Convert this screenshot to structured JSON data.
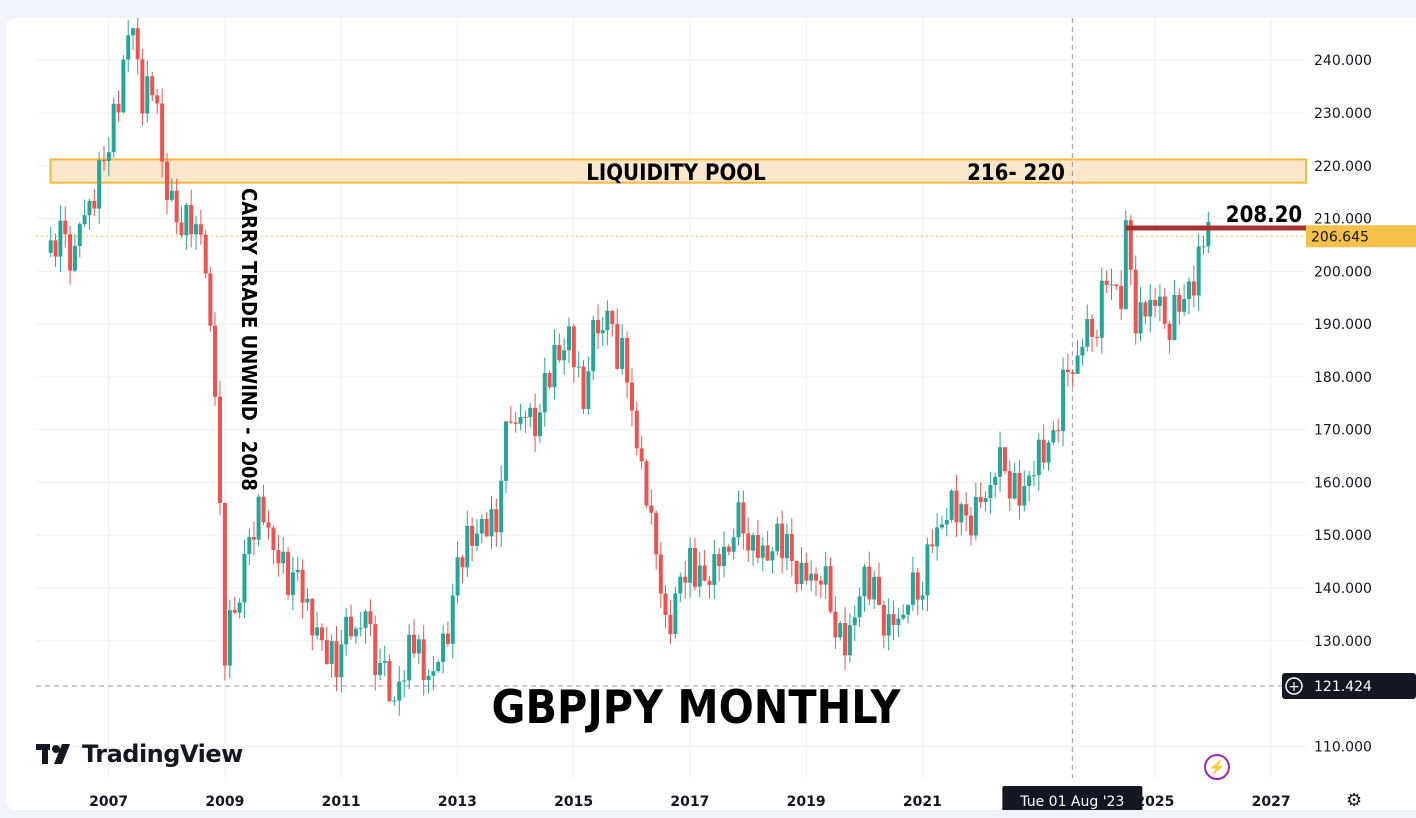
{
  "chart_data": {
    "type": "candlestick",
    "symbol_title": "GBPJPY MONTHLY",
    "branding": "TradingView",
    "y_axis": {
      "ticks": [
        "240.000",
        "230.000",
        "220.000",
        "210.000",
        "200.000",
        "190.000",
        "180.000",
        "170.000",
        "160.000",
        "150.000",
        "140.000",
        "130.000",
        "110.000"
      ],
      "range": [
        104,
        248
      ]
    },
    "x_axis": {
      "ticks": [
        "2007",
        "2009",
        "2011",
        "2013",
        "2015",
        "2017",
        "2019",
        "2021",
        "2025",
        "2027"
      ],
      "range": [
        2005.75,
        2027.6
      ]
    },
    "current_price": {
      "label": "206.645",
      "value": 206.645,
      "color": "#f5c14a"
    },
    "crosshair": {
      "price_label": "121.424",
      "price": 121.424,
      "time_label": "Tue 01 Aug '23",
      "time": 2023.58
    },
    "annotations": {
      "liquidity_pool": {
        "label": "LIQUIDITY POOL",
        "range_label": "216- 220",
        "low": 216.8,
        "high": 221.2,
        "from": 2006.0
      },
      "resistance": {
        "label": "208.20",
        "value": 208.2,
        "from": 2024.5,
        "color": "#a83232"
      },
      "carry_trade": {
        "label": "CARRY TRADE UNWIND - 2008"
      }
    },
    "colors": {
      "up": "#26a69a",
      "down": "#ef5350"
    },
    "series": [
      {
        "name": "",
        "points": [
          [
            2005.92,
            203.5
          ],
          [
            2006.17,
            206
          ],
          [
            2006.42,
            204
          ],
          [
            2006.67,
            212
          ],
          [
            2006.92,
            222
          ],
          [
            2007.17,
            235
          ],
          [
            2007.42,
            246
          ],
          [
            2007.58,
            232
          ],
          [
            2007.75,
            238
          ],
          [
            2007.92,
            220
          ],
          [
            2008.17,
            210
          ],
          [
            2008.42,
            212
          ],
          [
            2008.67,
            200
          ],
          [
            2008.83,
            178
          ],
          [
            2009.0,
            130
          ],
          [
            2009.17,
            135
          ],
          [
            2009.42,
            150
          ],
          [
            2009.58,
            156
          ],
          [
            2009.75,
            148
          ],
          [
            2009.92,
            146
          ],
          [
            2010.17,
            142
          ],
          [
            2010.42,
            135
          ],
          [
            2010.67,
            130
          ],
          [
            2010.92,
            128
          ],
          [
            2011.17,
            132
          ],
          [
            2011.42,
            134
          ],
          [
            2011.67,
            125
          ],
          [
            2011.83,
            119
          ],
          [
            2012.0,
            122
          ],
          [
            2012.17,
            130
          ],
          [
            2012.42,
            124
          ],
          [
            2012.67,
            125
          ],
          [
            2012.92,
            138
          ],
          [
            2013.17,
            148
          ],
          [
            2013.42,
            152
          ],
          [
            2013.67,
            155
          ],
          [
            2013.92,
            173
          ],
          [
            2014.17,
            172
          ],
          [
            2014.42,
            173
          ],
          [
            2014.67,
            182
          ],
          [
            2014.92,
            188
          ],
          [
            2015.17,
            178
          ],
          [
            2015.42,
            190
          ],
          [
            2015.58,
            192
          ],
          [
            2015.75,
            185
          ],
          [
            2015.92,
            180
          ],
          [
            2016.17,
            162
          ],
          [
            2016.42,
            150
          ],
          [
            2016.58,
            130
          ],
          [
            2016.75,
            138
          ],
          [
            2016.92,
            144
          ],
          [
            2017.17,
            140
          ],
          [
            2017.42,
            144
          ],
          [
            2017.67,
            150
          ],
          [
            2017.92,
            152
          ],
          [
            2018.17,
            147
          ],
          [
            2018.42,
            148
          ],
          [
            2018.67,
            146
          ],
          [
            2018.92,
            142
          ],
          [
            2019.17,
            144
          ],
          [
            2019.42,
            137
          ],
          [
            2019.67,
            129
          ],
          [
            2019.92,
            140
          ],
          [
            2020.17,
            138
          ],
          [
            2020.42,
            132
          ],
          [
            2020.67,
            137
          ],
          [
            2020.92,
            139
          ],
          [
            2021.17,
            150
          ],
          [
            2021.42,
            155
          ],
          [
            2021.67,
            152
          ],
          [
            2021.92,
            154
          ],
          [
            2022.17,
            161
          ],
          [
            2022.42,
            163
          ],
          [
            2022.67,
            158
          ],
          [
            2022.92,
            164
          ],
          [
            2023.17,
            164
          ],
          [
            2023.42,
            178
          ],
          [
            2023.67,
            185
          ],
          [
            2023.92,
            188
          ],
          [
            2024.17,
            200
          ],
          [
            2024.42,
            196
          ],
          [
            2024.5,
            206
          ],
          [
            2024.67,
            192
          ],
          [
            2024.92,
            195
          ],
          [
            2025.17,
            190
          ],
          [
            2025.42,
            195
          ],
          [
            2025.67,
            199
          ],
          [
            2025.92,
            206.6
          ]
        ]
      }
    ]
  }
}
